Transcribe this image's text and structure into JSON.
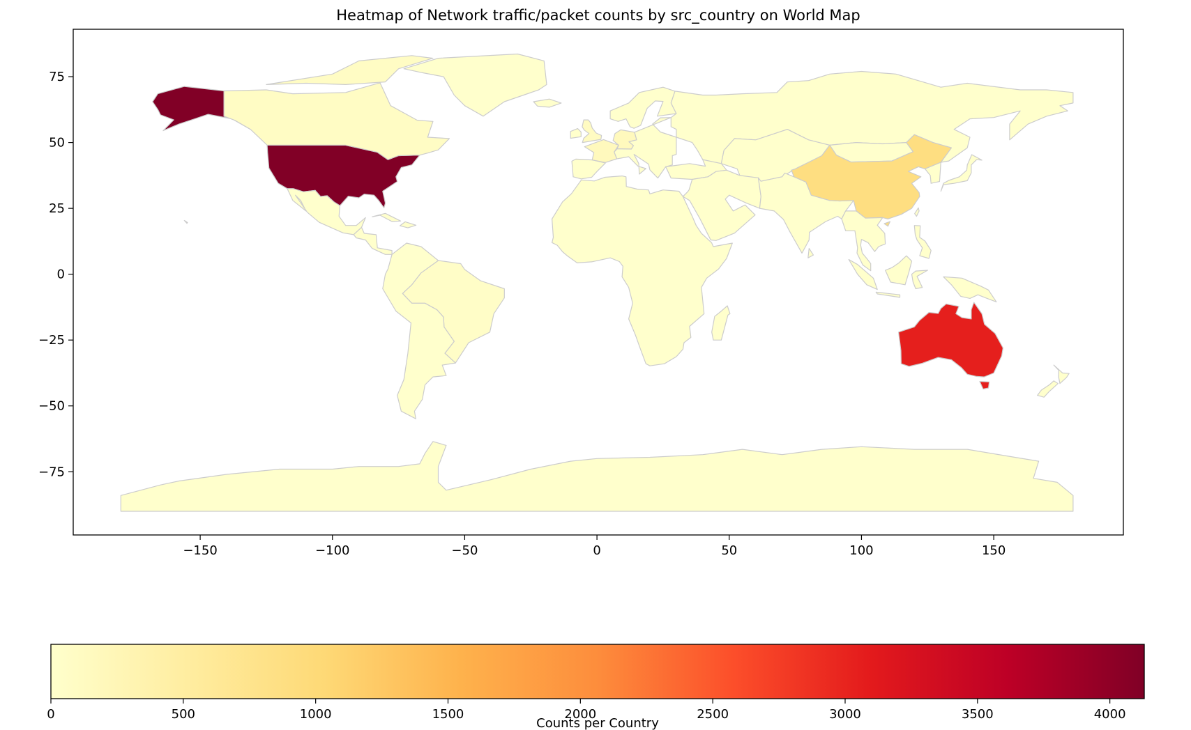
{
  "chart_data": {
    "type": "heatmap",
    "title": "Heatmap of Network traffic/packet counts by src_country on World Map",
    "xlim": [
      -198,
      199
    ],
    "ylim": [
      -99,
      93
    ],
    "x_ticks": [
      -150,
      -100,
      -50,
      0,
      50,
      100,
      150
    ],
    "y_ticks": [
      75,
      50,
      25,
      0,
      -25,
      -50,
      -75
    ],
    "colormap": "YlOrRd",
    "colorbar": {
      "label": "Counts per Country",
      "range": [
        0,
        4130
      ],
      "ticks": [
        0,
        500,
        1000,
        1500,
        2000,
        2500,
        3000,
        3500,
        4000
      ],
      "orientation": "horizontal",
      "placement": "bottom"
    },
    "highlighted_countries": [
      {
        "name": "United States of America",
        "value": 4120
      },
      {
        "name": "Australia",
        "value": 3050
      },
      {
        "name": "China",
        "value": 900
      },
      {
        "name": "Germany",
        "value": 180
      },
      {
        "name": "France",
        "value": 180
      },
      {
        "name": "United Kingdom",
        "value": 120
      },
      {
        "name": "Canada",
        "value": 90
      },
      {
        "name": "Brazil",
        "value": 60
      }
    ],
    "default_value": 0,
    "border_color": "#cccccc"
  }
}
